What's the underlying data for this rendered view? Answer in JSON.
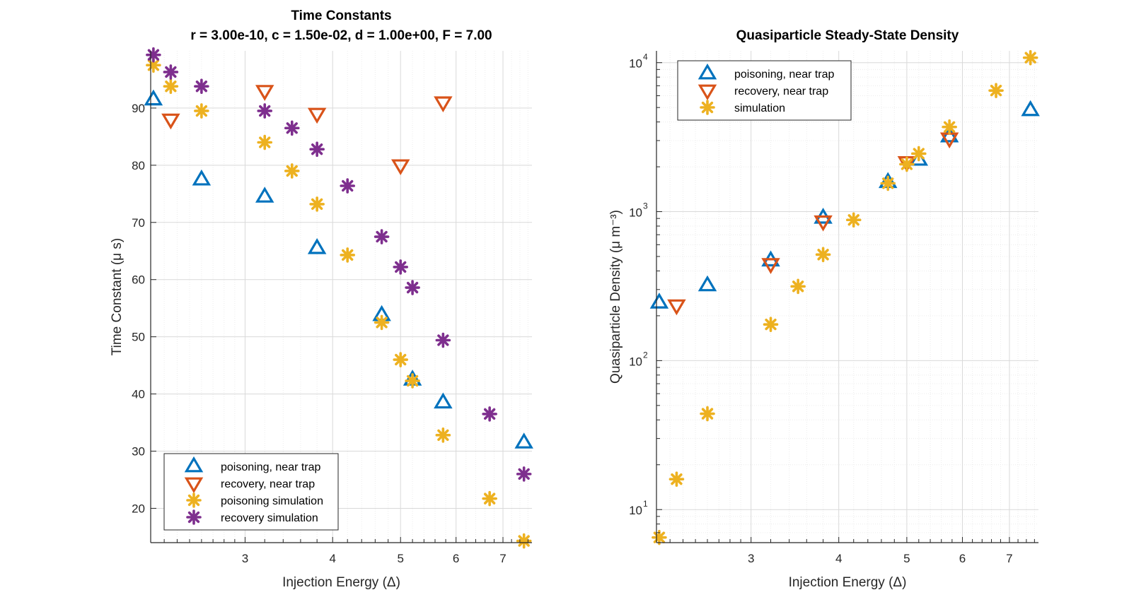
{
  "colors": {
    "poisoning": "#0072BD",
    "recovery": "#D95319",
    "simulation": "#EDB120",
    "recovery_sim": "#7E2F8E",
    "axis": "#262626",
    "grid": "#d9d9d9",
    "minor_grid": "#ececec"
  },
  "chart_data": [
    {
      "type": "scatter",
      "title": "Time Constants",
      "subtitle": "r = 3.00e-10, c = 1.50e-02, d = 1.00e+00, F = 7.00",
      "xlabel": "Injection Energy (Δ)",
      "ylabel": "Time Constant (μ s)",
      "xscale": "log",
      "yscale": "linear",
      "xlim": [
        2.2,
        7.7
      ],
      "ylim": [
        14,
        100
      ],
      "xticks": [
        3,
        4,
        5,
        6,
        7
      ],
      "xtick_labels": [
        "3",
        "4",
        "5",
        "6",
        "7"
      ],
      "yticks": [
        20,
        30,
        40,
        50,
        60,
        70,
        80,
        90
      ],
      "ytick_labels": [
        "20",
        "30",
        "40",
        "50",
        "60",
        "70",
        "80",
        "90"
      ],
      "grid": true,
      "legend_position": "bottom-left",
      "series": [
        {
          "name": "poisoning, near trap",
          "marker": "triangle-up",
          "color": "#0072BD",
          "x": [
            2.22,
            2.6,
            3.2,
            3.8,
            4.7,
            5.2,
            5.75,
            7.5
          ],
          "y": [
            91.5,
            77.5,
            74.5,
            65.5,
            53.8,
            42.5,
            38.5,
            31.5
          ]
        },
        {
          "name": "recovery, near trap",
          "marker": "triangle-down",
          "color": "#D95319",
          "x": [
            2.35,
            3.2,
            3.8,
            5.0,
            5.75
          ],
          "y": [
            88,
            93,
            89,
            80,
            91
          ]
        },
        {
          "name": "poisoning simulation",
          "marker": "asterisk",
          "color": "#EDB120",
          "x": [
            2.22,
            2.35,
            2.6,
            3.2,
            3.5,
            3.8,
            4.2,
            4.7,
            5.0,
            5.2,
            5.75,
            6.7,
            7.5
          ],
          "y": [
            97.5,
            93.8,
            89.5,
            84,
            79,
            73.2,
            64.3,
            52.5,
            46,
            42.3,
            32.8,
            21.7,
            14.3
          ]
        },
        {
          "name": "recovery simulation",
          "marker": "asterisk",
          "color": "#7E2F8E",
          "x": [
            2.22,
            2.35,
            2.6,
            3.2,
            3.5,
            3.8,
            4.2,
            4.7,
            5.0,
            5.2,
            5.75,
            6.7,
            7.5
          ],
          "y": [
            99.3,
            96.3,
            93.8,
            89.5,
            86.5,
            82.8,
            76.4,
            67.5,
            62.2,
            58.6,
            49.4,
            36.5,
            26
          ]
        }
      ]
    },
    {
      "type": "scatter",
      "title": "Quasiparticle Steady-State Density",
      "xlabel": "Injection Energy (Δ)",
      "ylabel": "Quasiparticle Density (μ m⁻³)",
      "xscale": "log",
      "yscale": "log",
      "xlim": [
        2.2,
        7.7
      ],
      "ylim": [
        6,
        12000
      ],
      "xticks": [
        3,
        4,
        5,
        6,
        7
      ],
      "xtick_labels": [
        "3",
        "4",
        "5",
        "6",
        "7"
      ],
      "ytick_labels": [
        "10",
        "10",
        "10",
        "10"
      ],
      "ytick_exponents": [
        "1",
        "2",
        "3",
        "4"
      ],
      "grid": true,
      "legend_position": "top-left",
      "series": [
        {
          "name": "poisoning, near trap",
          "marker": "triangle-up",
          "color": "#0072BD",
          "x": [
            2.22,
            2.6,
            3.2,
            3.8,
            4.7,
            5.2,
            5.75,
            7.5
          ],
          "y": [
            245,
            320,
            470,
            910,
            1580,
            2230,
            3200,
            4800
          ]
        },
        {
          "name": "recovery, near trap",
          "marker": "triangle-down",
          "color": "#D95319",
          "x": [
            2.35,
            3.2,
            3.8,
            5.0,
            5.75
          ],
          "y": [
            235,
            445,
            860,
            2150,
            3100
          ]
        },
        {
          "name": "simulation",
          "marker": "asterisk",
          "color": "#EDB120",
          "x": [
            2.22,
            2.35,
            2.6,
            3.2,
            3.5,
            3.8,
            4.2,
            4.7,
            5.0,
            5.2,
            5.75,
            6.7,
            7.5
          ],
          "y": [
            6.5,
            16,
            44,
            175,
            315,
            515,
            880,
            1550,
            2080,
            2450,
            3700,
            6500,
            10800
          ]
        }
      ]
    }
  ]
}
